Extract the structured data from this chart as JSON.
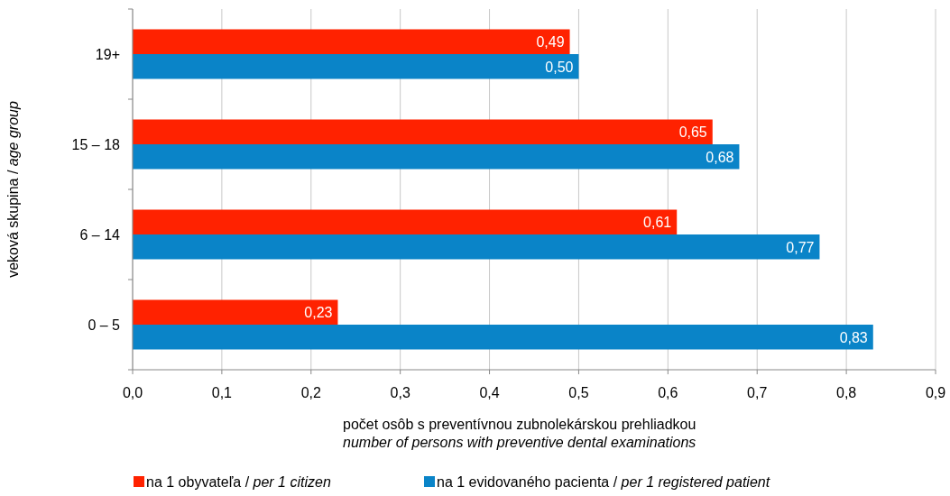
{
  "chart_data": {
    "type": "bar",
    "orientation": "horizontal",
    "categories": [
      "19+",
      "15 – 18",
      "6 – 14",
      "0 – 5"
    ],
    "series": [
      {
        "name": "na 1 obyvateľa / per 1 citizen",
        "color": "#ff2200",
        "values": [
          0.49,
          0.65,
          0.61,
          0.23
        ],
        "value_labels": [
          "0,49",
          "0,65",
          "0,61",
          "0,23"
        ]
      },
      {
        "name": "na 1 evidovaného pacienta / per 1 registered patient",
        "color": "#0a84c8",
        "values": [
          0.5,
          0.68,
          0.77,
          0.83
        ],
        "value_labels": [
          "0,50",
          "0,68",
          "0,77",
          "0,83"
        ]
      }
    ],
    "xlim": [
      0,
      0.9
    ],
    "xticks": [
      {
        "value": 0,
        "label": "0,0"
      },
      {
        "value": 0.1,
        "label": "0,1"
      },
      {
        "value": 0.2,
        "label": "0,2"
      },
      {
        "value": 0.3,
        "label": "0,3"
      },
      {
        "value": 0.4,
        "label": "0,4"
      },
      {
        "value": 0.5,
        "label": "0,5"
      },
      {
        "value": 0.6,
        "label": "0,6"
      },
      {
        "value": 0.7,
        "label": "0,7"
      },
      {
        "value": 0.8,
        "label": "0,8"
      },
      {
        "value": 0.9,
        "label": "0,9"
      }
    ],
    "xlabel": "počet osôb s preventívnou zubnolekárskou prehliadkou\nnumber of persons with preventive dental examinations",
    "ylabel": "veková skupina / age group",
    "grid": "x",
    "legend": "bottom"
  }
}
